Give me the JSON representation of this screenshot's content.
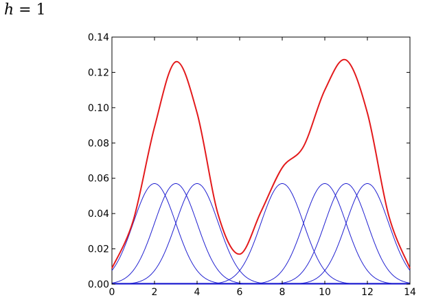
{
  "header": {
    "variable": "h",
    "relation": "= 1"
  },
  "chart_data": {
    "type": "line",
    "title": "",
    "xlabel": "",
    "ylabel": "",
    "xlim": [
      0,
      14
    ],
    "ylim": [
      0,
      0.14
    ],
    "xticks": [
      "0",
      "2",
      "4",
      "6",
      "8",
      "10",
      "12",
      "14"
    ],
    "yticks": [
      "0.00",
      "0.02",
      "0.04",
      "0.06",
      "0.08",
      "0.10",
      "0.12",
      "0.14"
    ],
    "grid": false,
    "legend": "none",
    "kernel_centers": [
      2,
      3,
      4,
      8,
      10,
      11,
      12
    ],
    "kernel_peak": 0.057,
    "kernel_sigma": 1,
    "series": [
      {
        "role": "sum",
        "color": "#e31a1c",
        "x": [
          0,
          1,
          2,
          3,
          4,
          5,
          6,
          7,
          8,
          9,
          10,
          11,
          12,
          13,
          14
        ],
        "values": [
          0.009,
          0.036,
          0.089,
          0.126,
          0.097,
          0.039,
          0.017,
          0.041,
          0.066,
          0.078,
          0.11,
          0.127,
          0.097,
          0.039,
          0.009
        ]
      },
      {
        "role": "kernel",
        "color": "#1f1fd0",
        "center": 2
      },
      {
        "role": "kernel",
        "color": "#1f1fd0",
        "center": 3
      },
      {
        "role": "kernel",
        "color": "#1f1fd0",
        "center": 4
      },
      {
        "role": "kernel",
        "color": "#1f1fd0",
        "center": 8
      },
      {
        "role": "kernel",
        "color": "#1f1fd0",
        "center": 10
      },
      {
        "role": "kernel",
        "color": "#1f1fd0",
        "center": 11
      },
      {
        "role": "kernel",
        "color": "#1f1fd0",
        "center": 12
      }
    ]
  }
}
